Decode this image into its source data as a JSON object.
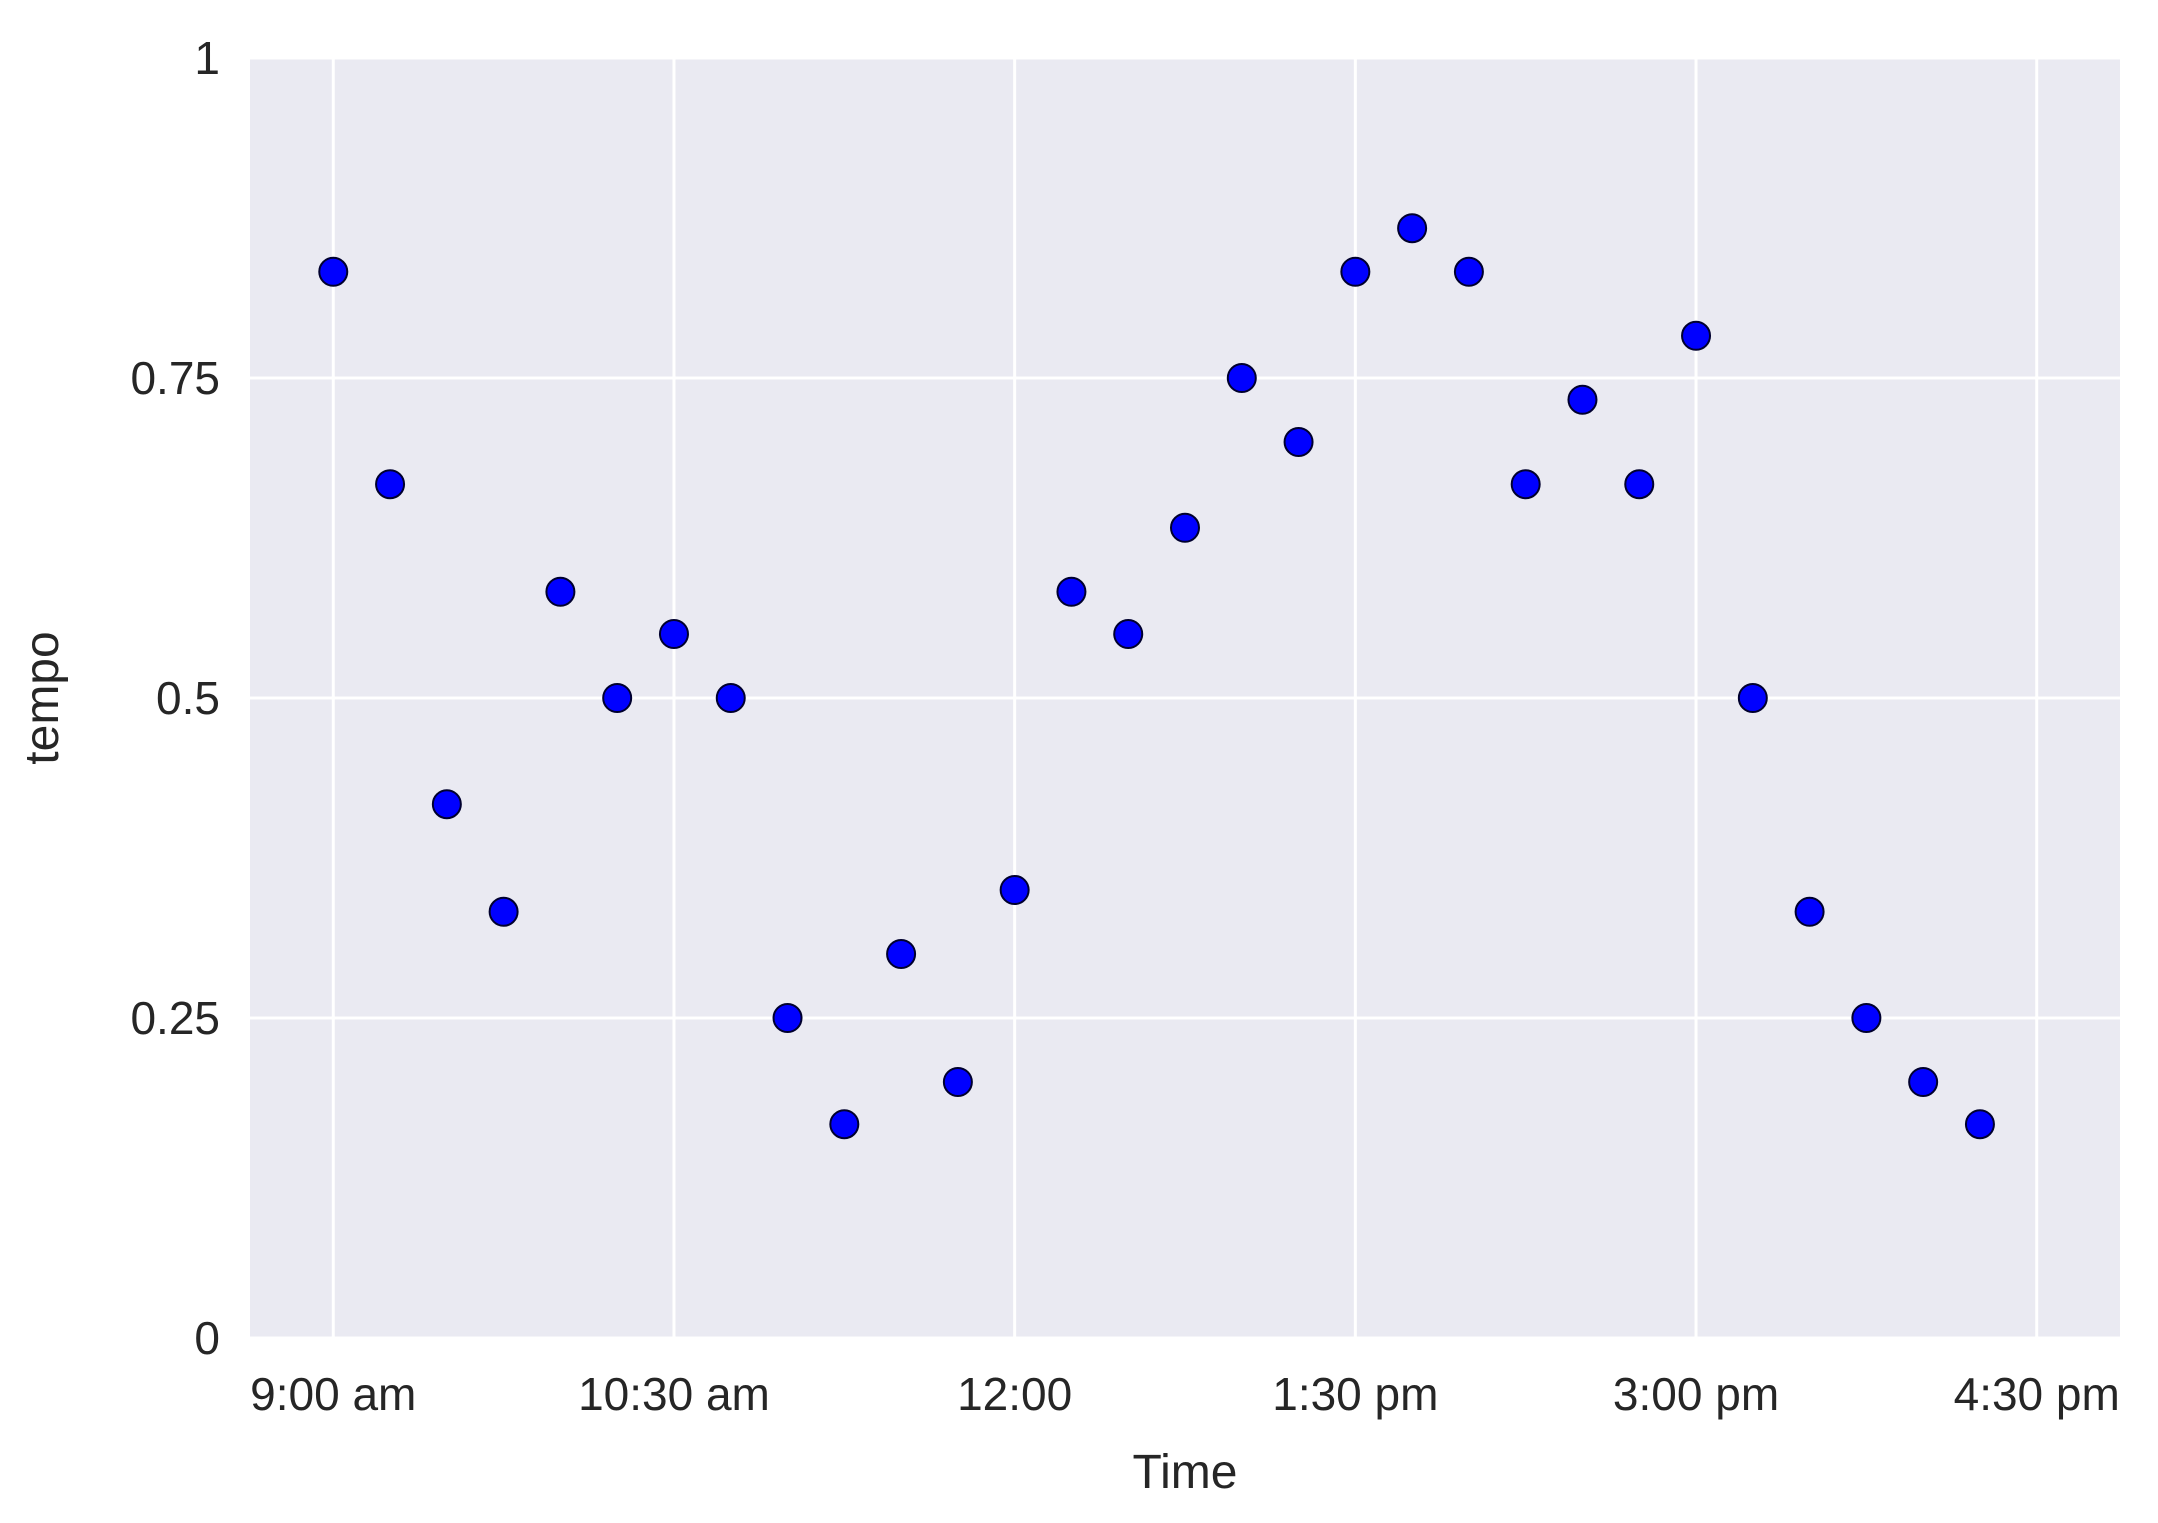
{
  "chart_data": {
    "type": "scatter",
    "title": "",
    "xlabel": "Time",
    "ylabel": "tempo",
    "x_unit": "time of day",
    "xlim": [
      "08:38",
      "16:52"
    ],
    "ylim": [
      0,
      1
    ],
    "x_ticks": [
      {
        "time": "09:00",
        "label": "9:00 am"
      },
      {
        "time": "10:30",
        "label": "10:30 am"
      },
      {
        "time": "12:00",
        "label": "12:00"
      },
      {
        "time": "13:30",
        "label": "1:30 pm"
      },
      {
        "time": "15:00",
        "label": "3:00 pm"
      },
      {
        "time": "16:30",
        "label": "4:30 pm"
      }
    ],
    "y_ticks": [
      {
        "value": 0,
        "label": "0"
      },
      {
        "value": 0.25,
        "label": "0.25"
      },
      {
        "value": 0.5,
        "label": "0.5"
      },
      {
        "value": 0.75,
        "label": "0.75"
      },
      {
        "value": 1,
        "label": "1"
      }
    ],
    "grid": true,
    "legend": "none",
    "colors": {
      "background": "#eaeaf2",
      "grid": "#ffffff",
      "marker_fill": "#0000ff",
      "marker_edge": "#00002e",
      "text": "#262626"
    },
    "series": [
      {
        "points": [
          {
            "x": "09:00",
            "y": 0.833
          },
          {
            "x": "09:15",
            "y": 0.667
          },
          {
            "x": "09:30",
            "y": 0.417
          },
          {
            "x": "09:45",
            "y": 0.333
          },
          {
            "x": "10:00",
            "y": 0.583
          },
          {
            "x": "10:15",
            "y": 0.5
          },
          {
            "x": "10:30",
            "y": 0.55
          },
          {
            "x": "10:45",
            "y": 0.5
          },
          {
            "x": "11:00",
            "y": 0.25
          },
          {
            "x": "11:15",
            "y": 0.167
          },
          {
            "x": "11:30",
            "y": 0.3
          },
          {
            "x": "11:45",
            "y": 0.2
          },
          {
            "x": "12:00",
            "y": 0.35
          },
          {
            "x": "12:15",
            "y": 0.583
          },
          {
            "x": "12:30",
            "y": 0.55
          },
          {
            "x": "12:45",
            "y": 0.633
          },
          {
            "x": "13:00",
            "y": 0.75
          },
          {
            "x": "13:15",
            "y": 0.7
          },
          {
            "x": "13:30",
            "y": 0.833
          },
          {
            "x": "13:45",
            "y": 0.867
          },
          {
            "x": "14:00",
            "y": 0.833
          },
          {
            "x": "14:15",
            "y": 0.667
          },
          {
            "x": "14:30",
            "y": 0.733
          },
          {
            "x": "14:45",
            "y": 0.667
          },
          {
            "x": "15:00",
            "y": 0.783
          },
          {
            "x": "15:15",
            "y": 0.5
          },
          {
            "x": "15:30",
            "y": 0.333
          },
          {
            "x": "15:45",
            "y": 0.25
          },
          {
            "x": "16:00",
            "y": 0.2
          },
          {
            "x": "16:15",
            "y": 0.167
          }
        ]
      }
    ]
  }
}
